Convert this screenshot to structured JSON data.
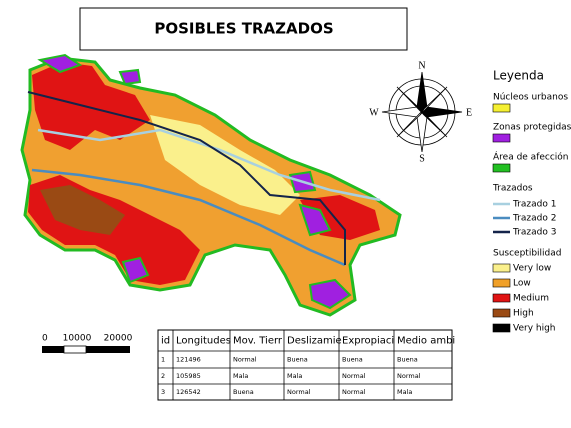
{
  "header": {
    "title": "POSIBLES TRAZADOS"
  },
  "compass": {
    "north": "N",
    "south": "S",
    "west": "W",
    "east": "E"
  },
  "legend": {
    "title": "Leyenda",
    "groups": [
      {
        "title": "Núcleos urbanos",
        "color": "#f5f032"
      },
      {
        "title": "Zonas protegidas",
        "color": "#a020e0"
      },
      {
        "title": "Área de afección",
        "color": "#22c022"
      }
    ],
    "routes": {
      "title": "Trazados",
      "items": [
        {
          "label": "Trazado 1",
          "color": "#a8d0e0"
        },
        {
          "label": "Trazado 2",
          "color": "#4a8cc0"
        },
        {
          "label": "Trazado 3",
          "color": "#14244a"
        }
      ]
    },
    "susceptibility": {
      "title": "Susceptibilidad",
      "items": [
        {
          "label": "Very low",
          "color": "#faf08c"
        },
        {
          "label": "Low",
          "color": "#f0a028"
        },
        {
          "label": "Medium",
          "color": "#e01414"
        },
        {
          "label": "High",
          "color": "#9a4a14"
        },
        {
          "label": "Very high",
          "color": "#000000"
        }
      ]
    }
  },
  "scale": {
    "labels": [
      0,
      10000,
      20000
    ]
  },
  "table": {
    "headers": [
      "id",
      "Longitudes",
      "Mov. Tierr",
      "Deslizamie",
      "Expropiaci",
      "Medio ambi"
    ],
    "rows": [
      [
        "1",
        "121496",
        "Normal",
        "Buena",
        "Buena",
        "Buena"
      ],
      [
        "2",
        "105985",
        "Mala",
        "Mala",
        "Normal",
        "Normal"
      ],
      [
        "3",
        "126542",
        "Buena",
        "Normal",
        "Normal",
        "Mala"
      ]
    ]
  }
}
